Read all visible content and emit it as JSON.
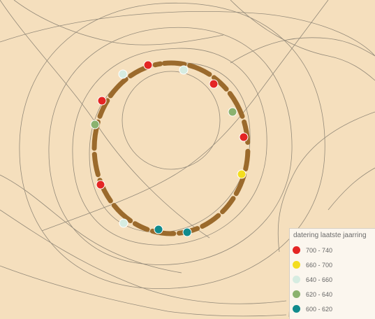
{
  "legend": {
    "title": "datering laatste jaarring",
    "items": [
      {
        "label": "700  -  740",
        "color": "#e42524"
      },
      {
        "label": "660  -  700",
        "color": "#f3dd1f"
      },
      {
        "label": "640  -  660",
        "color": "#d6ece1"
      },
      {
        "label": "620  -  640",
        "color": "#8bb26f"
      },
      {
        "label": "600  -  620",
        "color": "#118b8d"
      }
    ]
  },
  "colors": {
    "background": "#f5dfbd",
    "contour": "#7b7468",
    "posts": "#9b6a2c",
    "point_outline": "#ffffff"
  },
  "points": [
    {
      "class": "700  -  740"
    },
    {
      "class": "640  -  660"
    },
    {
      "class": "700  -  740"
    },
    {
      "class": "620  -  640"
    },
    {
      "class": "700  -  740"
    },
    {
      "class": "660  -  700"
    },
    {
      "class": "600  -  620"
    },
    {
      "class": "600  -  620"
    },
    {
      "class": "640  -  660"
    },
    {
      "class": "700  -  740"
    },
    {
      "class": "620  -  640"
    },
    {
      "class": "700  -  740"
    },
    {
      "class": "640  -  660"
    }
  ]
}
